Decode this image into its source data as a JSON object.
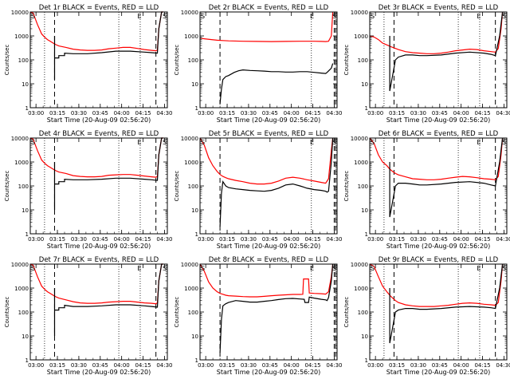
{
  "chart_data": {
    "type": "line",
    "ylabel": "Counts/sec",
    "xlabel": "Start Time (20-Aug-09 02:56:20)",
    "yscale": "log",
    "ylim": [
      1,
      10000
    ],
    "ytick_labels": [
      "1",
      "10",
      "100",
      "1000",
      "10000"
    ],
    "xlim": [
      0,
      96
    ],
    "xtick_labels": [
      "03:00",
      "03:15",
      "03:30",
      "03:45",
      "04:00",
      "04:15",
      "04:30"
    ],
    "series_colors": {
      "events": "#000000",
      "lld": "#ff0000"
    },
    "markers": {
      "dotted_x": [
        [
          10,
          62,
          77
        ],
        [
          78
        ]
      ],
      "dashed_x": [
        [
          17,
          88
        ],
        [
          14,
          94,
          95
        ]
      ],
      "letters": [
        "S",
        "E"
      ]
    },
    "panels": [
      {
        "title": "Det 1r BLACK = Events, RED = LLD",
        "events": {
          "x": [
            17,
            17,
            17,
            20,
            20,
            24,
            24,
            30,
            40,
            50,
            60,
            70,
            80,
            85,
            89,
            90,
            92,
            93
          ],
          "y": [
            1000,
            15,
            120,
            120,
            150,
            150,
            190,
            180,
            180,
            200,
            230,
            230,
            210,
            200,
            190,
            2000,
            10000,
            10000
          ]
        },
        "lld": {
          "x": [
            0,
            2,
            5,
            8,
            10,
            12,
            14,
            16,
            18,
            20,
            25,
            30,
            35,
            40,
            45,
            50,
            55,
            60,
            65,
            70,
            75,
            80,
            85,
            88,
            89,
            90,
            92,
            93
          ],
          "y": [
            10000,
            9000,
            3000,
            1200,
            900,
            700,
            600,
            500,
            430,
            380,
            330,
            280,
            260,
            250,
            250,
            260,
            290,
            310,
            330,
            330,
            300,
            270,
            250,
            240,
            260,
            2000,
            10000,
            10000
          ]
        }
      },
      {
        "title": "Det 2r BLACK = Events, RED = LLD",
        "events": {
          "x": [
            14,
            15,
            16,
            18,
            20,
            24,
            27,
            30,
            35,
            40,
            45,
            50,
            55,
            60,
            65,
            70,
            75,
            80,
            85,
            88,
            89,
            92,
            93
          ],
          "y": [
            1.5,
            6,
            15,
            20,
            22,
            30,
            35,
            38,
            36,
            35,
            34,
            32,
            32,
            31,
            31,
            32,
            32,
            30,
            28,
            27,
            30,
            45,
            70
          ]
        },
        "lld": {
          "x": [
            0,
            3,
            8,
            12,
            16,
            20,
            30,
            40,
            50,
            60,
            70,
            80,
            85,
            88,
            90,
            92,
            93
          ],
          "y": [
            800,
            760,
            700,
            660,
            640,
            620,
            600,
            590,
            580,
            590,
            600,
            600,
            590,
            580,
            600,
            1000,
            10000
          ]
        }
      },
      {
        "title": "Det 3r BLACK = Events, RED = LLD",
        "events": {
          "x": [
            14,
            14,
            18,
            18,
            20,
            25,
            30,
            35,
            40,
            50,
            60,
            70,
            80,
            85,
            88,
            91,
            93
          ],
          "y": [
            1000,
            5,
            100,
            100,
            130,
            160,
            160,
            150,
            150,
            160,
            190,
            210,
            190,
            170,
            150,
            1000,
            10000
          ]
        },
        "lld": {
          "x": [
            0,
            3,
            6,
            9,
            12,
            15,
            18,
            20,
            25,
            30,
            35,
            40,
            45,
            50,
            55,
            60,
            65,
            70,
            75,
            80,
            85,
            88,
            90,
            92,
            93
          ],
          "y": [
            1000,
            900,
            700,
            500,
            420,
            350,
            300,
            270,
            220,
            200,
            190,
            180,
            180,
            190,
            210,
            240,
            260,
            280,
            270,
            240,
            220,
            210,
            300,
            2000,
            10000
          ]
        }
      },
      {
        "title": "Det 4r BLACK = Events, RED = LLD",
        "events": {
          "x": [
            17,
            17,
            17,
            20,
            20,
            24,
            24,
            30,
            40,
            50,
            60,
            70,
            80,
            85,
            89,
            90,
            92,
            93
          ],
          "y": [
            1000,
            10,
            120,
            120,
            150,
            150,
            190,
            180,
            180,
            190,
            210,
            210,
            190,
            180,
            170,
            2000,
            10000,
            10000
          ]
        },
        "lld": {
          "x": [
            0,
            2,
            5,
            8,
            10,
            12,
            14,
            16,
            18,
            20,
            25,
            30,
            35,
            40,
            45,
            50,
            55,
            60,
            65,
            70,
            75,
            80,
            85,
            88,
            89,
            90,
            92,
            93
          ],
          "y": [
            10000,
            9000,
            3000,
            1200,
            900,
            700,
            600,
            500,
            430,
            380,
            330,
            270,
            250,
            240,
            240,
            250,
            280,
            290,
            300,
            300,
            280,
            260,
            240,
            230,
            250,
            2000,
            10000,
            10000
          ]
        }
      },
      {
        "title": "Det 5r BLACK = Events, RED = LLD",
        "events": {
          "x": [
            14,
            15,
            16,
            18,
            20,
            25,
            30,
            35,
            40,
            45,
            50,
            55,
            60,
            65,
            70,
            75,
            80,
            85,
            88,
            89,
            90,
            92,
            93
          ],
          "y": [
            2,
            50,
            150,
            100,
            85,
            75,
            70,
            65,
            62,
            60,
            65,
            80,
            110,
            120,
            100,
            80,
            70,
            65,
            60,
            55,
            60,
            1000,
            10000
          ]
        },
        "lld": {
          "x": [
            0,
            3,
            6,
            9,
            12,
            14,
            16,
            18,
            20,
            25,
            30,
            35,
            40,
            45,
            50,
            55,
            60,
            65,
            70,
            75,
            80,
            85,
            88,
            90,
            92,
            93
          ],
          "y": [
            10000,
            5000,
            1500,
            700,
            400,
            300,
            250,
            220,
            200,
            170,
            150,
            130,
            120,
            120,
            130,
            160,
            210,
            230,
            210,
            180,
            160,
            140,
            130,
            200,
            3000,
            10000
          ]
        }
      },
      {
        "title": "Det 6r BLACK = Events, RED = LLD",
        "events": {
          "x": [
            14,
            14,
            18,
            18,
            20,
            25,
            30,
            35,
            40,
            50,
            60,
            70,
            80,
            85,
            88,
            91,
            93
          ],
          "y": [
            1000,
            5,
            100,
            100,
            130,
            130,
            120,
            110,
            110,
            120,
            140,
            150,
            130,
            110,
            100,
            1000,
            10000
          ]
        },
        "lld": {
          "x": [
            0,
            3,
            6,
            9,
            12,
            14,
            16,
            18,
            20,
            25,
            30,
            35,
            40,
            45,
            50,
            55,
            60,
            65,
            70,
            75,
            80,
            85,
            88,
            90,
            92,
            93
          ],
          "y": [
            10000,
            6000,
            2000,
            1000,
            700,
            500,
            400,
            330,
            290,
            240,
            200,
            190,
            180,
            180,
            190,
            210,
            230,
            250,
            240,
            220,
            200,
            190,
            180,
            250,
            2000,
            10000
          ]
        }
      },
      {
        "title": "Det 7r BLACK = Events, RED = LLD",
        "events": {
          "x": [
            17,
            17,
            17,
            20,
            20,
            24,
            24,
            30,
            40,
            50,
            60,
            70,
            80,
            85,
            89,
            90,
            92,
            93
          ],
          "y": [
            1000,
            10,
            120,
            120,
            150,
            150,
            190,
            170,
            170,
            180,
            200,
            200,
            180,
            170,
            160,
            2000,
            10000,
            10000
          ]
        },
        "lld": {
          "x": [
            0,
            2,
            5,
            8,
            10,
            12,
            14,
            16,
            18,
            20,
            25,
            30,
            35,
            40,
            45,
            50,
            55,
            60,
            65,
            70,
            75,
            80,
            85,
            88,
            89,
            90,
            92,
            93
          ],
          "y": [
            10000,
            9000,
            3000,
            1200,
            900,
            700,
            600,
            500,
            430,
            380,
            320,
            270,
            240,
            230,
            230,
            240,
            260,
            270,
            280,
            280,
            260,
            240,
            230,
            220,
            240,
            2000,
            10000,
            10000
          ]
        }
      },
      {
        "title": "Det 8r BLACK = Events, RED = LLD",
        "events": {
          "x": [
            14,
            15,
            16,
            18,
            20,
            25,
            30,
            35,
            40,
            45,
            50,
            55,
            60,
            65,
            70,
            73,
            73.5,
            76,
            76.5,
            80,
            85,
            88,
            89,
            90,
            92,
            93
          ],
          "y": [
            2,
            50,
            180,
            220,
            250,
            300,
            280,
            260,
            260,
            280,
            300,
            330,
            360,
            370,
            350,
            340,
            250,
            250,
            420,
            380,
            340,
            320,
            300,
            400,
            2000,
            10000
          ]
        },
        "lld": {
          "x": [
            0,
            3,
            6,
            9,
            12,
            14,
            16,
            18,
            20,
            25,
            30,
            35,
            40,
            45,
            50,
            55,
            60,
            65,
            70,
            72,
            72.5,
            76,
            76.5,
            80,
            85,
            88,
            90,
            92,
            93
          ],
          "y": [
            10000,
            5000,
            1800,
            1000,
            700,
            600,
            550,
            500,
            480,
            460,
            440,
            430,
            430,
            450,
            480,
            500,
            520,
            540,
            540,
            550,
            2400,
            2400,
            620,
            600,
            580,
            560,
            700,
            3000,
            10000
          ]
        }
      },
      {
        "title": "Det 9r BLACK = Events, RED = LLD",
        "events": {
          "x": [
            14,
            14,
            18,
            18,
            20,
            25,
            30,
            35,
            40,
            50,
            60,
            70,
            80,
            85,
            88,
            91,
            93
          ],
          "y": [
            1000,
            5,
            100,
            100,
            120,
            140,
            140,
            130,
            130,
            140,
            160,
            170,
            160,
            150,
            140,
            1000,
            10000
          ]
        },
        "lld": {
          "x": [
            0,
            3,
            6,
            9,
            12,
            14,
            16,
            18,
            20,
            25,
            30,
            35,
            40,
            45,
            50,
            55,
            60,
            65,
            70,
            75,
            80,
            85,
            88,
            90,
            92,
            93
          ],
          "y": [
            10000,
            8000,
            3000,
            1200,
            700,
            500,
            380,
            300,
            250,
            200,
            180,
            170,
            170,
            170,
            180,
            190,
            210,
            230,
            240,
            230,
            210,
            200,
            190,
            250,
            2000,
            10000
          ]
        }
      }
    ]
  }
}
